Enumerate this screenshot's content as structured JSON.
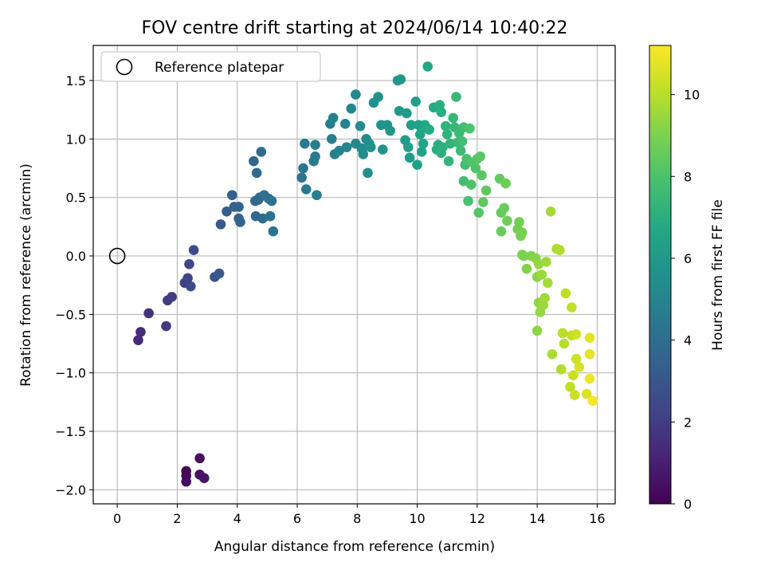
{
  "chart_data": {
    "type": "scatter",
    "title": "FOV centre drift starting at 2024/06/14 10:40:22",
    "xlabel": "Angular distance from reference (arcmin)",
    "ylabel": "Rotation from reference (arcmin)",
    "xlim": [
      -0.8,
      16.6
    ],
    "ylim": [
      -2.12,
      1.8
    ],
    "xticks": [
      0,
      2,
      4,
      6,
      8,
      10,
      12,
      14,
      16
    ],
    "xtick_labels": [
      "0",
      "2",
      "4",
      "6",
      "8",
      "10",
      "12",
      "14",
      "16"
    ],
    "yticks": [
      -2.0,
      -1.5,
      -1.0,
      -0.5,
      0.0,
      0.5,
      1.0,
      1.5
    ],
    "ytick_labels": [
      "−2.0",
      "−1.5",
      "−1.0",
      "−0.5",
      "0.0",
      "0.5",
      "1.0",
      "1.5"
    ],
    "grid": true,
    "legend": {
      "placement": "top-left",
      "label": "Reference platepar",
      "marker": "open-circle"
    },
    "reference_point": {
      "x": 0.0,
      "y": 0.0
    },
    "colorbar": {
      "label": "Hours from first FF file",
      "colormap": "viridis",
      "range": [
        0,
        11.2
      ],
      "ticks": [
        0,
        2,
        4,
        6,
        8,
        10
      ],
      "tick_labels": [
        "0",
        "2",
        "4",
        "6",
        "8",
        "10"
      ]
    },
    "points": [
      {
        "x": 2.3,
        "y": -1.84,
        "c": 0.1
      },
      {
        "x": 2.3,
        "y": -1.88,
        "c": 0.2
      },
      {
        "x": 2.3,
        "y": -1.93,
        "c": 0.3
      },
      {
        "x": 2.75,
        "y": -1.73,
        "c": 0.4
      },
      {
        "x": 2.75,
        "y": -1.87,
        "c": 0.5
      },
      {
        "x": 2.9,
        "y": -1.9,
        "c": 0.6
      },
      {
        "x": 0.7,
        "y": -0.72,
        "c": 1.3
      },
      {
        "x": 0.78,
        "y": -0.65,
        "c": 1.4
      },
      {
        "x": 1.05,
        "y": -0.49,
        "c": 1.6
      },
      {
        "x": 1.63,
        "y": -0.6,
        "c": 1.8
      },
      {
        "x": 1.68,
        "y": -0.38,
        "c": 1.9
      },
      {
        "x": 1.82,
        "y": -0.35,
        "c": 2.0
      },
      {
        "x": 2.25,
        "y": -0.23,
        "c": 2.2
      },
      {
        "x": 2.35,
        "y": -0.19,
        "c": 2.3
      },
      {
        "x": 2.4,
        "y": -0.07,
        "c": 2.4
      },
      {
        "x": 2.45,
        "y": -0.26,
        "c": 2.5
      },
      {
        "x": 2.55,
        "y": 0.05,
        "c": 2.6
      },
      {
        "x": 3.25,
        "y": -0.18,
        "c": 3.0
      },
      {
        "x": 3.4,
        "y": -0.15,
        "c": 3.1
      },
      {
        "x": 3.45,
        "y": 0.27,
        "c": 3.2
      },
      {
        "x": 3.65,
        "y": 0.38,
        "c": 3.3
      },
      {
        "x": 3.83,
        "y": 0.52,
        "c": 3.4
      },
      {
        "x": 3.9,
        "y": 0.42,
        "c": 3.5
      },
      {
        "x": 4.05,
        "y": 0.42,
        "c": 3.5
      },
      {
        "x": 4.05,
        "y": 0.32,
        "c": 3.6
      },
      {
        "x": 4.1,
        "y": 0.29,
        "c": 3.6
      },
      {
        "x": 4.55,
        "y": 0.81,
        "c": 3.7
      },
      {
        "x": 4.6,
        "y": 0.47,
        "c": 3.7
      },
      {
        "x": 4.62,
        "y": 0.34,
        "c": 3.8
      },
      {
        "x": 4.65,
        "y": 0.71,
        "c": 3.8
      },
      {
        "x": 4.7,
        "y": 0.48,
        "c": 3.9
      },
      {
        "x": 4.75,
        "y": 0.5,
        "c": 3.9
      },
      {
        "x": 4.8,
        "y": 0.89,
        "c": 4.0
      },
      {
        "x": 4.85,
        "y": 0.32,
        "c": 4.0
      },
      {
        "x": 4.9,
        "y": 0.52,
        "c": 4.1
      },
      {
        "x": 5.05,
        "y": 0.49,
        "c": 4.1
      },
      {
        "x": 5.1,
        "y": 0.34,
        "c": 4.2
      },
      {
        "x": 5.15,
        "y": 0.47,
        "c": 4.2
      },
      {
        "x": 5.2,
        "y": 0.21,
        "c": 4.3
      },
      {
        "x": 6.15,
        "y": 0.67,
        "c": 4.4
      },
      {
        "x": 6.2,
        "y": 0.75,
        "c": 4.4
      },
      {
        "x": 6.25,
        "y": 0.96,
        "c": 4.5
      },
      {
        "x": 6.3,
        "y": 0.57,
        "c": 4.5
      },
      {
        "x": 6.55,
        "y": 0.81,
        "c": 4.6
      },
      {
        "x": 6.6,
        "y": 0.85,
        "c": 4.6
      },
      {
        "x": 6.6,
        "y": 0.95,
        "c": 4.7
      },
      {
        "x": 6.65,
        "y": 0.52,
        "c": 4.7
      },
      {
        "x": 7.1,
        "y": 1.13,
        "c": 4.8
      },
      {
        "x": 7.15,
        "y": 1.0,
        "c": 4.8
      },
      {
        "x": 7.2,
        "y": 1.18,
        "c": 4.9
      },
      {
        "x": 7.25,
        "y": 0.87,
        "c": 4.9
      },
      {
        "x": 7.4,
        "y": 0.9,
        "c": 5.0
      },
      {
        "x": 7.6,
        "y": 1.13,
        "c": 5.0
      },
      {
        "x": 7.65,
        "y": 0.93,
        "c": 5.1
      },
      {
        "x": 7.8,
        "y": 1.26,
        "c": 5.1
      },
      {
        "x": 7.95,
        "y": 1.38,
        "c": 5.2
      },
      {
        "x": 7.95,
        "y": 0.96,
        "c": 5.2
      },
      {
        "x": 8.1,
        "y": 1.11,
        "c": 5.3
      },
      {
        "x": 8.15,
        "y": 0.92,
        "c": 5.3
      },
      {
        "x": 8.2,
        "y": 0.87,
        "c": 5.4
      },
      {
        "x": 8.3,
        "y": 1.0,
        "c": 5.4
      },
      {
        "x": 8.35,
        "y": 0.71,
        "c": 5.5
      },
      {
        "x": 8.4,
        "y": 0.96,
        "c": 5.5
      },
      {
        "x": 8.45,
        "y": 0.93,
        "c": 5.6
      },
      {
        "x": 8.55,
        "y": 1.31,
        "c": 5.6
      },
      {
        "x": 8.7,
        "y": 1.36,
        "c": 5.7
      },
      {
        "x": 8.8,
        "y": 1.12,
        "c": 5.7
      },
      {
        "x": 8.85,
        "y": 0.91,
        "c": 5.8
      },
      {
        "x": 9.0,
        "y": 1.12,
        "c": 5.8
      },
      {
        "x": 9.1,
        "y": 1.07,
        "c": 5.9
      },
      {
        "x": 9.35,
        "y": 1.5,
        "c": 5.9
      },
      {
        "x": 9.4,
        "y": 1.24,
        "c": 6.0
      },
      {
        "x": 9.45,
        "y": 1.51,
        "c": 6.0
      },
      {
        "x": 9.6,
        "y": 0.99,
        "c": 6.1
      },
      {
        "x": 9.65,
        "y": 1.22,
        "c": 6.1
      },
      {
        "x": 9.7,
        "y": 0.93,
        "c": 6.2
      },
      {
        "x": 9.75,
        "y": 0.84,
        "c": 6.2
      },
      {
        "x": 9.8,
        "y": 1.12,
        "c": 6.3
      },
      {
        "x": 9.95,
        "y": 1.32,
        "c": 6.3
      },
      {
        "x": 10.0,
        "y": 0.78,
        "c": 6.4
      },
      {
        "x": 10.05,
        "y": 1.12,
        "c": 6.4
      },
      {
        "x": 10.1,
        "y": 1.04,
        "c": 6.5
      },
      {
        "x": 10.15,
        "y": 0.89,
        "c": 6.5
      },
      {
        "x": 10.2,
        "y": 0.96,
        "c": 6.6
      },
      {
        "x": 10.25,
        "y": 1.12,
        "c": 6.6
      },
      {
        "x": 10.3,
        "y": 1.1,
        "c": 6.7
      },
      {
        "x": 10.35,
        "y": 1.62,
        "c": 6.7
      },
      {
        "x": 10.4,
        "y": 1.08,
        "c": 6.8
      },
      {
        "x": 10.55,
        "y": 1.27,
        "c": 6.8
      },
      {
        "x": 10.65,
        "y": 0.91,
        "c": 6.9
      },
      {
        "x": 10.7,
        "y": 0.95,
        "c": 6.9
      },
      {
        "x": 10.75,
        "y": 1.29,
        "c": 7.0
      },
      {
        "x": 10.8,
        "y": 1.23,
        "c": 7.0
      },
      {
        "x": 10.8,
        "y": 0.88,
        "c": 7.1
      },
      {
        "x": 10.85,
        "y": 0.93,
        "c": 7.1
      },
      {
        "x": 10.95,
        "y": 1.11,
        "c": 7.2
      },
      {
        "x": 11.0,
        "y": 1.04,
        "c": 7.2
      },
      {
        "x": 11.05,
        "y": 0.81,
        "c": 7.3
      },
      {
        "x": 11.1,
        "y": 0.96,
        "c": 7.3
      },
      {
        "x": 11.2,
        "y": 1.18,
        "c": 7.4
      },
      {
        "x": 11.25,
        "y": 1.1,
        "c": 7.4
      },
      {
        "x": 11.3,
        "y": 1.36,
        "c": 7.5
      },
      {
        "x": 11.35,
        "y": 0.97,
        "c": 7.5
      },
      {
        "x": 11.4,
        "y": 1.05,
        "c": 7.6
      },
      {
        "x": 11.45,
        "y": 0.9,
        "c": 7.6
      },
      {
        "x": 11.5,
        "y": 0.98,
        "c": 7.7
      },
      {
        "x": 11.55,
        "y": 1.1,
        "c": 7.7
      },
      {
        "x": 11.55,
        "y": 0.64,
        "c": 7.8
      },
      {
        "x": 11.6,
        "y": 0.78,
        "c": 7.8
      },
      {
        "x": 11.65,
        "y": 0.83,
        "c": 7.9
      },
      {
        "x": 11.7,
        "y": 0.47,
        "c": 7.9
      },
      {
        "x": 11.75,
        "y": 1.09,
        "c": 8.0
      },
      {
        "x": 11.8,
        "y": 0.61,
        "c": 8.0
      },
      {
        "x": 11.85,
        "y": 0.8,
        "c": 8.1
      },
      {
        "x": 11.95,
        "y": 0.75,
        "c": 8.1
      },
      {
        "x": 12.0,
        "y": 0.83,
        "c": 8.2
      },
      {
        "x": 12.05,
        "y": 0.37,
        "c": 8.2
      },
      {
        "x": 12.1,
        "y": 0.85,
        "c": 8.3
      },
      {
        "x": 12.15,
        "y": 0.69,
        "c": 8.3
      },
      {
        "x": 12.2,
        "y": 0.46,
        "c": 8.4
      },
      {
        "x": 12.3,
        "y": 0.56,
        "c": 8.4
      },
      {
        "x": 12.75,
        "y": 0.66,
        "c": 8.5
      },
      {
        "x": 12.8,
        "y": 0.37,
        "c": 8.5
      },
      {
        "x": 12.8,
        "y": 0.21,
        "c": 8.6
      },
      {
        "x": 12.9,
        "y": 0.41,
        "c": 8.6
      },
      {
        "x": 12.95,
        "y": 0.62,
        "c": 8.7
      },
      {
        "x": 13.0,
        "y": 0.3,
        "c": 8.7
      },
      {
        "x": 13.35,
        "y": 0.23,
        "c": 8.8
      },
      {
        "x": 13.4,
        "y": 0.29,
        "c": 8.8
      },
      {
        "x": 13.45,
        "y": 0.17,
        "c": 8.9
      },
      {
        "x": 13.5,
        "y": 0.2,
        "c": 8.9
      },
      {
        "x": 13.5,
        "y": 0.01,
        "c": 9.0
      },
      {
        "x": 13.55,
        "y": 0.0,
        "c": 9.0
      },
      {
        "x": 13.65,
        "y": -0.11,
        "c": 9.1
      },
      {
        "x": 13.8,
        "y": 0.0,
        "c": 9.1
      },
      {
        "x": 13.95,
        "y": -0.02,
        "c": 9.2
      },
      {
        "x": 14.0,
        "y": -0.18,
        "c": 9.2
      },
      {
        "x": 14.0,
        "y": -0.64,
        "c": 9.3
      },
      {
        "x": 14.05,
        "y": -0.4,
        "c": 9.3
      },
      {
        "x": 14.05,
        "y": -0.07,
        "c": 9.4
      },
      {
        "x": 14.1,
        "y": -0.48,
        "c": 9.4
      },
      {
        "x": 14.15,
        "y": -0.16,
        "c": 9.5
      },
      {
        "x": 14.2,
        "y": -0.42,
        "c": 9.5
      },
      {
        "x": 14.25,
        "y": -0.36,
        "c": 9.6
      },
      {
        "x": 14.3,
        "y": -0.05,
        "c": 9.6
      },
      {
        "x": 14.35,
        "y": -0.23,
        "c": 9.7
      },
      {
        "x": 14.45,
        "y": 0.38,
        "c": 9.7
      },
      {
        "x": 14.5,
        "y": -0.84,
        "c": 9.8
      },
      {
        "x": 14.65,
        "y": 0.06,
        "c": 9.8
      },
      {
        "x": 14.75,
        "y": 0.05,
        "c": 9.9
      },
      {
        "x": 14.8,
        "y": -0.97,
        "c": 9.9
      },
      {
        "x": 14.85,
        "y": -0.66,
        "c": 10.0
      },
      {
        "x": 14.9,
        "y": -0.75,
        "c": 10.0
      },
      {
        "x": 14.95,
        "y": -0.32,
        "c": 10.1
      },
      {
        "x": 15.1,
        "y": -1.12,
        "c": 10.1
      },
      {
        "x": 15.15,
        "y": -0.44,
        "c": 10.2
      },
      {
        "x": 15.15,
        "y": -0.68,
        "c": 10.2
      },
      {
        "x": 15.2,
        "y": -1.02,
        "c": 10.3
      },
      {
        "x": 15.25,
        "y": -1.19,
        "c": 10.3
      },
      {
        "x": 15.3,
        "y": -0.67,
        "c": 10.4
      },
      {
        "x": 15.3,
        "y": -0.88,
        "c": 10.4
      },
      {
        "x": 15.4,
        "y": -0.95,
        "c": 10.5
      },
      {
        "x": 15.65,
        "y": -1.18,
        "c": 10.6
      },
      {
        "x": 15.75,
        "y": -0.7,
        "c": 10.7
      },
      {
        "x": 15.75,
        "y": -0.84,
        "c": 10.8
      },
      {
        "x": 15.75,
        "y": -1.05,
        "c": 10.9
      },
      {
        "x": 15.85,
        "y": -1.24,
        "c": 11.1
      }
    ]
  }
}
